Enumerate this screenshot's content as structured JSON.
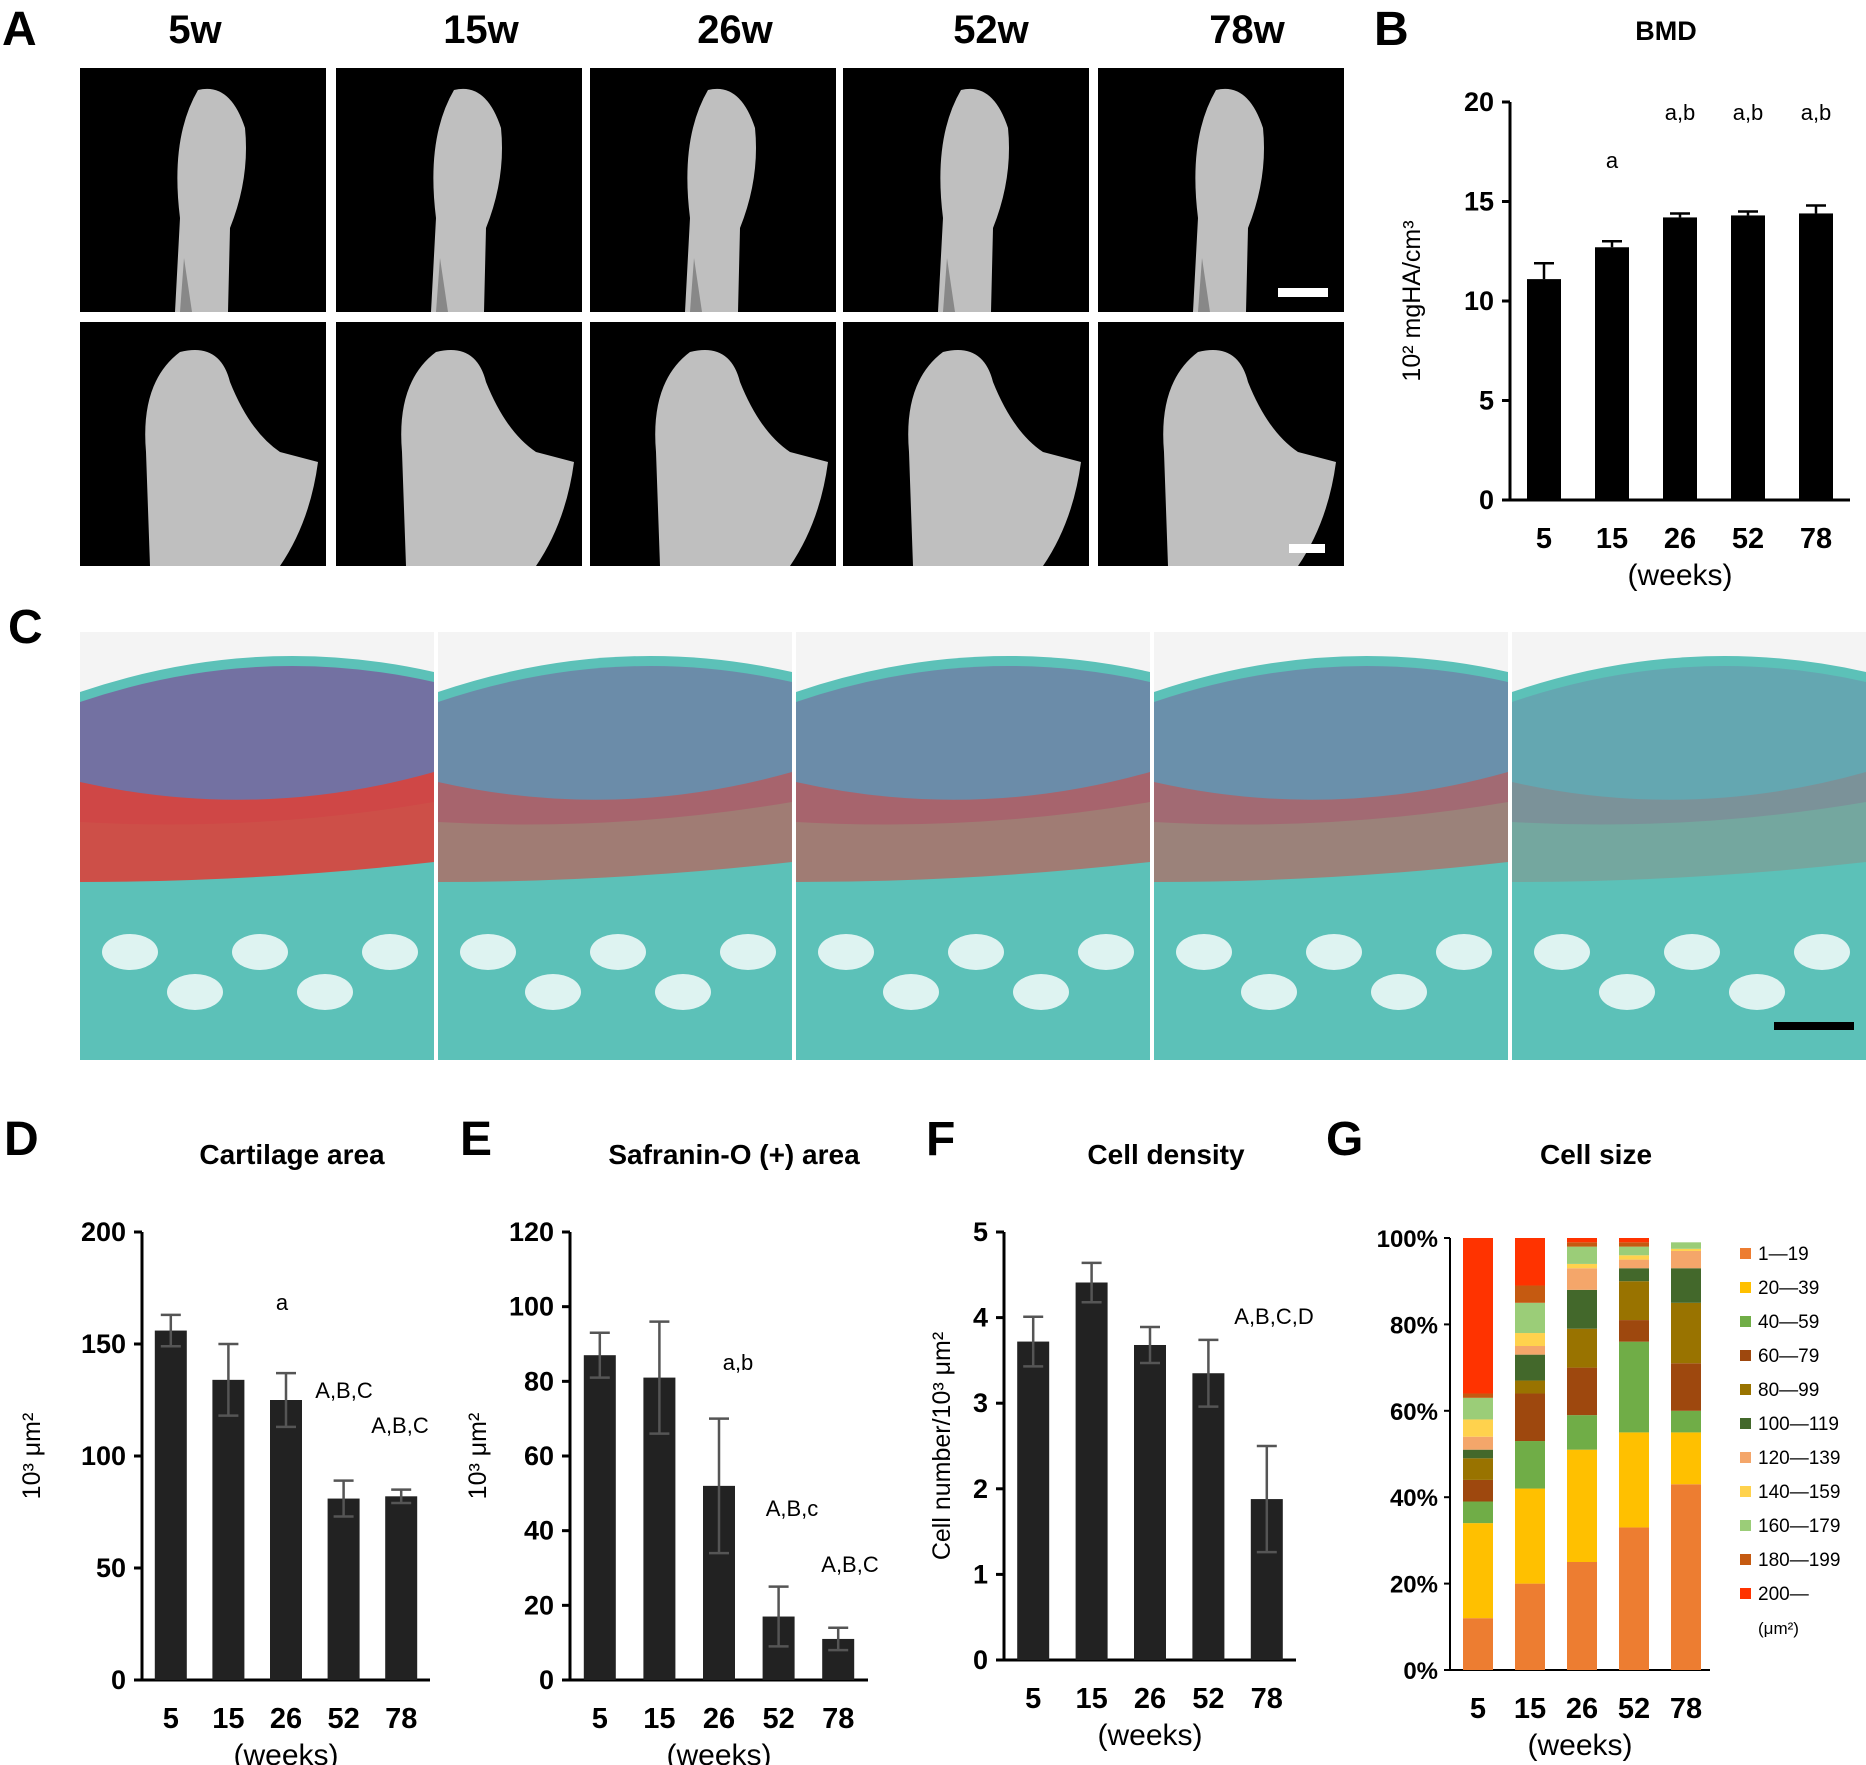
{
  "panels": {
    "A": {
      "letter": "A",
      "weeks": [
        "5w",
        "15w",
        "26w",
        "52w",
        "78w"
      ]
    },
    "B": {
      "letter": "B"
    },
    "C": {
      "letter": "C"
    },
    "D": {
      "letter": "D"
    },
    "E": {
      "letter": "E"
    },
    "F": {
      "letter": "F"
    },
    "G": {
      "letter": "G"
    }
  },
  "colors": {
    "bar_dark": "#222222",
    "bar_black": "#000000",
    "error_gray": "#555555",
    "microct_bone": "#cfcfcf",
    "histo_green": "#5cc1b8",
    "histo_red": "#d9433c",
    "histo_purple": "#7a5a9c"
  },
  "chart_data": [
    {
      "id": "B",
      "type": "bar",
      "title": "BMD",
      "ylabel": "10² mgHA/cm³",
      "xlabel": "(weeks)",
      "categories": [
        "5",
        "15",
        "26",
        "52",
        "78"
      ],
      "values": [
        11.1,
        12.7,
        14.2,
        14.3,
        14.4
      ],
      "errors": [
        0.8,
        0.3,
        0.2,
        0.2,
        0.4
      ],
      "annotations": [
        "",
        "a",
        "a,b",
        "a,b",
        "a,b"
      ],
      "ylim": [
        0,
        20
      ],
      "yticks": [
        "0",
        "5",
        "10",
        "15",
        "20"
      ]
    },
    {
      "id": "D",
      "type": "bar",
      "title": "Cartilage area",
      "ylabel": "10³ μm²",
      "xlabel": "(weeks)",
      "categories": [
        "5",
        "15",
        "26",
        "52",
        "78"
      ],
      "values": [
        156,
        134,
        125,
        81,
        82
      ],
      "errors": [
        7,
        16,
        12,
        8,
        3
      ],
      "annotations": [
        "",
        "",
        "a",
        "A,B,C",
        "A,B,C"
      ],
      "ylim": [
        0,
        200
      ],
      "yticks": [
        "0",
        "50",
        "100",
        "150",
        "200"
      ]
    },
    {
      "id": "E",
      "type": "bar",
      "title": "Safranin-O (+) area",
      "ylabel": "10³ μm²",
      "xlabel": "(weeks)",
      "categories": [
        "5",
        "15",
        "26",
        "52",
        "78"
      ],
      "values": [
        87,
        81,
        52,
        17,
        11
      ],
      "errors": [
        6,
        15,
        18,
        8,
        3
      ],
      "annotations": [
        "",
        "",
        "a,b",
        "A,B,c",
        "A,B,C"
      ],
      "ylim": [
        0,
        120
      ],
      "yticks": [
        "0",
        "20",
        "40",
        "60",
        "80",
        "100",
        "120"
      ]
    },
    {
      "id": "F",
      "type": "bar",
      "title": "Cell density",
      "ylabel": "Cell number/10³ μm²",
      "xlabel": "(weeks)",
      "categories": [
        "5",
        "15",
        "26",
        "52",
        "78"
      ],
      "values": [
        3.72,
        4.41,
        3.68,
        3.35,
        1.88
      ],
      "errors": [
        0.29,
        0.23,
        0.21,
        0.39,
        0.62
      ],
      "annotations": [
        "",
        "",
        "",
        "",
        "A,B,C,D"
      ],
      "ylim": [
        0,
        5
      ],
      "yticks": [
        "0",
        "1",
        "2",
        "3",
        "4",
        "5"
      ]
    },
    {
      "id": "G",
      "type": "bar",
      "stacked": true,
      "title": "Cell size",
      "xlabel": "(weeks)",
      "categories": [
        "5",
        "15",
        "26",
        "52",
        "78"
      ],
      "yticks": [
        "0%",
        "20%",
        "40%",
        "60%",
        "80%",
        "100%"
      ],
      "legend_unit": "(μm²)",
      "series": [
        {
          "name": "1—19",
          "color": "#ed7d31",
          "values": [
            12,
            20,
            25,
            33,
            43
          ]
        },
        {
          "name": "20—39",
          "color": "#ffc000",
          "values": [
            22,
            22,
            26,
            22,
            12
          ]
        },
        {
          "name": "40—59",
          "color": "#70ad47",
          "values": [
            5,
            11,
            8,
            21,
            5
          ]
        },
        {
          "name": "60—79",
          "color": "#9e480e",
          "values": [
            5,
            11,
            11,
            5,
            11
          ]
        },
        {
          "name": "80—99",
          "color": "#997300",
          "values": [
            5,
            3,
            9,
            9,
            14
          ]
        },
        {
          "name": "100—119",
          "color": "#43682b",
          "values": [
            2,
            6,
            9,
            3,
            8
          ]
        },
        {
          "name": "120—139",
          "color": "#f4a66a",
          "values": [
            3,
            2,
            5,
            2,
            4
          ]
        },
        {
          "name": "140—159",
          "color": "#ffd24d",
          "values": [
            4,
            3,
            1,
            1,
            0.5
          ]
        },
        {
          "name": "160—179",
          "color": "#9bcd78",
          "values": [
            5,
            7,
            4,
            2,
            1.5
          ]
        },
        {
          "name": "180—199",
          "color": "#c55a11",
          "values": [
            1,
            4,
            1,
            1,
            0
          ]
        },
        {
          "name": "200—",
          "color": "#ff3300",
          "values": [
            36,
            11,
            1,
            1,
            0
          ]
        }
      ]
    }
  ]
}
